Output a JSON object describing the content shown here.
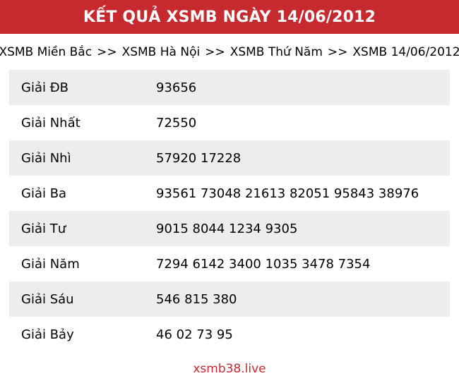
{
  "colors": {
    "accent_red": "#c62a2e",
    "row_alt_gray": "#ededed",
    "text_black": "#000000",
    "header_text_white": "#ffffff"
  },
  "header": {
    "title": "KẾT QUẢ XSMB NGÀY 14/06/2012"
  },
  "breadcrumb": {
    "separator": ">>",
    "items": [
      "XSMB Miền Bắc",
      "XSMB Hà Nội",
      "XSMB Thứ Năm",
      "XSMB 14/06/2012"
    ]
  },
  "results_table": {
    "rows": [
      {
        "label": "Giải ĐB",
        "numbers": [
          "93656"
        ]
      },
      {
        "label": "Giải Nhất",
        "numbers": [
          "72550"
        ]
      },
      {
        "label": "Giải Nhì",
        "numbers": [
          "57920",
          "17228"
        ]
      },
      {
        "label": "Giải Ba",
        "numbers": [
          "93561",
          "73048",
          "21613",
          "82051",
          "95843",
          "38976"
        ]
      },
      {
        "label": "Giải Tư",
        "numbers": [
          "9015",
          "8044",
          "1234",
          "9305"
        ]
      },
      {
        "label": "Giải Năm",
        "numbers": [
          "7294",
          "6142",
          "3400",
          "1035",
          "3478",
          "7354"
        ]
      },
      {
        "label": "Giải Sáu",
        "numbers": [
          "546",
          "815",
          "380"
        ]
      },
      {
        "label": "Giải Bảy",
        "numbers": [
          "46",
          "02",
          "73",
          "95"
        ]
      }
    ]
  },
  "footer": {
    "site": "xsmb38.live"
  }
}
